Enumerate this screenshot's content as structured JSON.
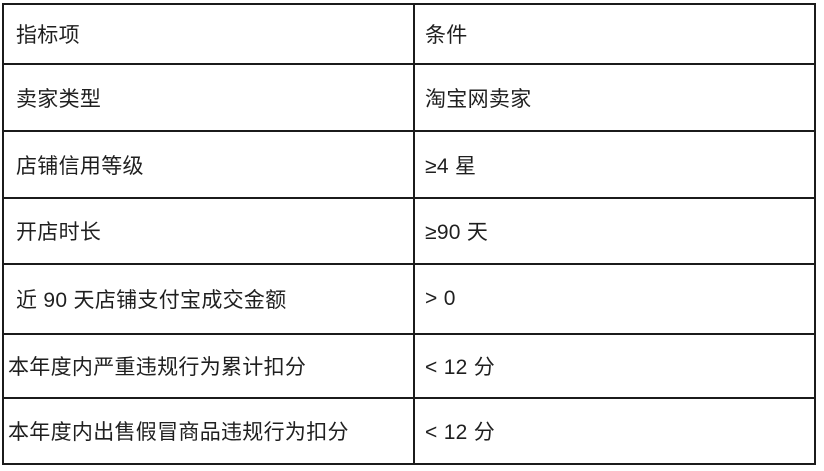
{
  "colors": {
    "background": "#ffffff",
    "border": "#1b1b1b",
    "text": "#1f1f1f"
  },
  "table": {
    "header": {
      "indicator": "指标项",
      "condition": "条件"
    },
    "rows": [
      {
        "indicator": "卖家类型",
        "condition": "淘宝网卖家"
      },
      {
        "indicator": "店铺信用等级",
        "condition": "≥4 星"
      },
      {
        "indicator": "开店时长",
        "condition": "≥90 天"
      },
      {
        "indicator": "近 90 天店铺支付宝成交金额",
        "condition": "> 0"
      },
      {
        "indicator": "本年度内严重违规行为累计扣分",
        "condition": "< 12 分"
      },
      {
        "indicator": "本年度内出售假冒商品违规行为扣分",
        "condition": "< 12 分"
      }
    ]
  }
}
